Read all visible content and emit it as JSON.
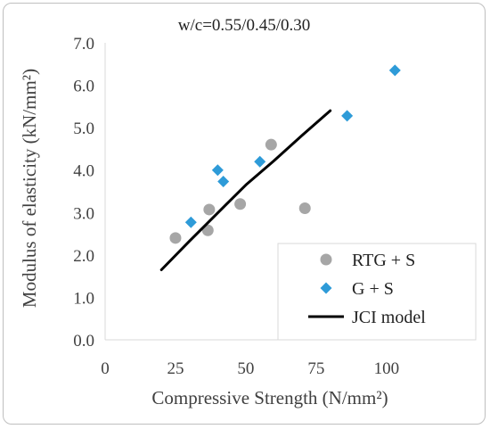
{
  "chart_data": {
    "type": "scatter",
    "title": "w/c=0.55/0.45/0.30",
    "xlabel": "Compressive Strength (N/mm²)",
    "ylabel": "Modulus of elasticity (kN/mm²)",
    "xlim": [
      0,
      120
    ],
    "ylim": [
      0,
      7
    ],
    "x_ticks": [
      "0",
      "25",
      "50",
      "75",
      "100"
    ],
    "y_ticks": [
      "0.0",
      "1.0",
      "2.0",
      "3.0",
      "4.0",
      "5.0",
      "6.0",
      "7.0"
    ],
    "x_tick_values": [
      0,
      25,
      50,
      75,
      100
    ],
    "y_tick_values": [
      0,
      1,
      2,
      3,
      4,
      5,
      6,
      7
    ],
    "grid": false,
    "legend_position": "bottom-right",
    "series": [
      {
        "name": "RTG + S",
        "marker": "circle",
        "color": "#a6a6a6",
        "points": [
          {
            "x": 25,
            "y": 2.4
          },
          {
            "x": 36.5,
            "y": 2.58
          },
          {
            "x": 37,
            "y": 3.07
          },
          {
            "x": 48,
            "y": 3.2
          },
          {
            "x": 59,
            "y": 4.6
          },
          {
            "x": 71,
            "y": 3.1
          }
        ]
      },
      {
        "name": "G + S",
        "marker": "diamond",
        "color": "#2e9bd8",
        "points": [
          {
            "x": 30.5,
            "y": 2.77
          },
          {
            "x": 40,
            "y": 4.0
          },
          {
            "x": 42,
            "y": 3.73
          },
          {
            "x": 55,
            "y": 4.2
          },
          {
            "x": 86,
            "y": 5.28
          },
          {
            "x": 103,
            "y": 6.35
          }
        ]
      },
      {
        "name": "JCI model",
        "marker": "line",
        "color": "#000000",
        "points": [
          {
            "x": 20,
            "y": 1.65
          },
          {
            "x": 30,
            "y": 2.33
          },
          {
            "x": 40,
            "y": 2.99
          },
          {
            "x": 50,
            "y": 3.65
          },
          {
            "x": 60,
            "y": 4.22
          },
          {
            "x": 70,
            "y": 4.82
          },
          {
            "x": 80,
            "y": 5.4
          }
        ]
      }
    ]
  }
}
